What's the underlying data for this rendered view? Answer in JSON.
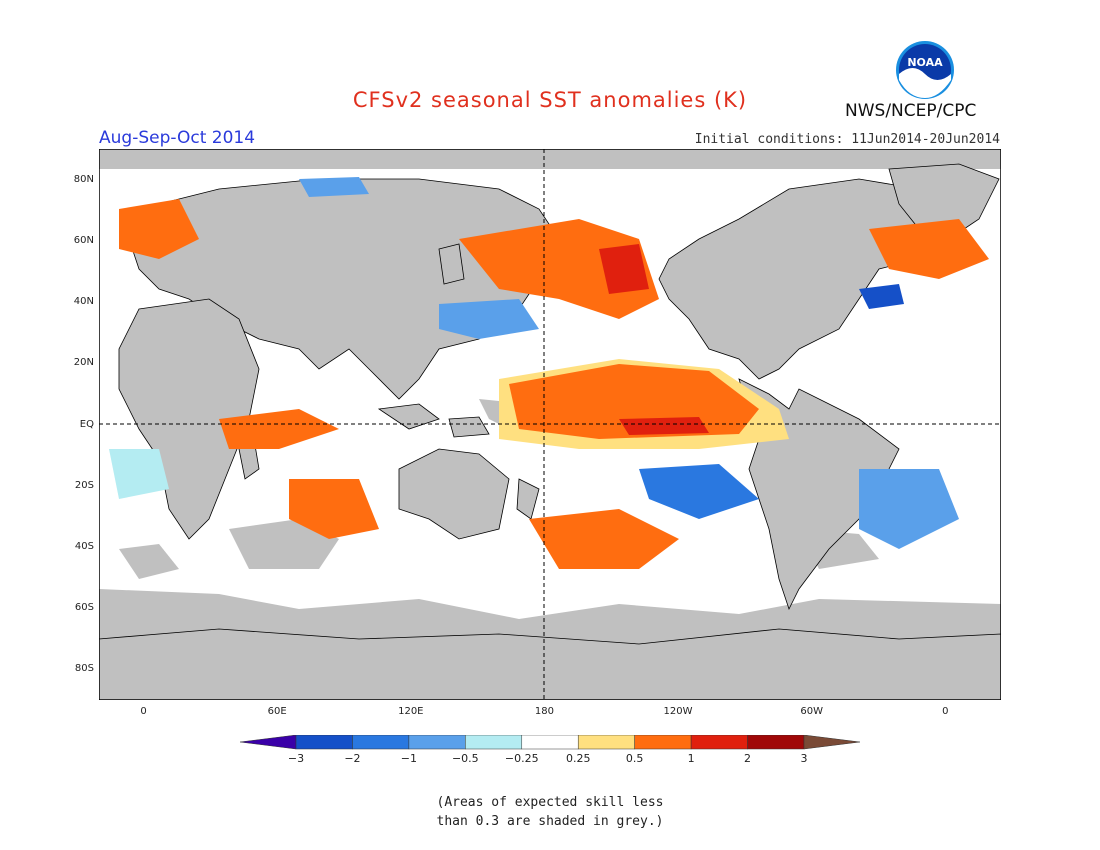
{
  "header": {
    "title": "CFSv2 seasonal SST anomalies (K)",
    "period": "Aug-Sep-Oct 2014",
    "initial_conditions": "Initial conditions: 11Jun2014-20Jun2014",
    "agency": "NWS/NCEP/CPC",
    "logo_text": "NOAA"
  },
  "axes": {
    "lat_labels": [
      "80N",
      "60N",
      "40N",
      "20N",
      "EQ",
      "20S",
      "40S",
      "60S",
      "80S"
    ],
    "lat_values": [
      80,
      60,
      40,
      20,
      0,
      -20,
      -40,
      -60,
      -80
    ],
    "lon_labels": [
      "0",
      "60E",
      "120E",
      "180",
      "120W",
      "60W",
      "0"
    ],
    "lon_values": [
      0,
      60,
      120,
      180,
      240,
      300,
      360
    ],
    "lon_range": [
      -20,
      385
    ],
    "lat_range": [
      -90,
      90
    ]
  },
  "colorbar": {
    "labels": [
      "−3",
      "−2",
      "−1",
      "−0.5",
      "−0.25",
      "0.25",
      "0.5",
      "1",
      "2",
      "3"
    ],
    "colors": [
      "#3a00a8",
      "#1550c8",
      "#2a78e0",
      "#5aa0ea",
      "#b4ecf2",
      "#ffffff",
      "#ffe080",
      "#ff6d10",
      "#e0200e",
      "#a00808",
      "#7a4a36"
    ]
  },
  "note": {
    "line1": "(Areas of expected skill less",
    "line2": "than 0.3 are shaded in grey.)"
  },
  "legend_colors": {
    "grey": "#c0c0c0",
    "land": "#c0c0c0"
  }
}
